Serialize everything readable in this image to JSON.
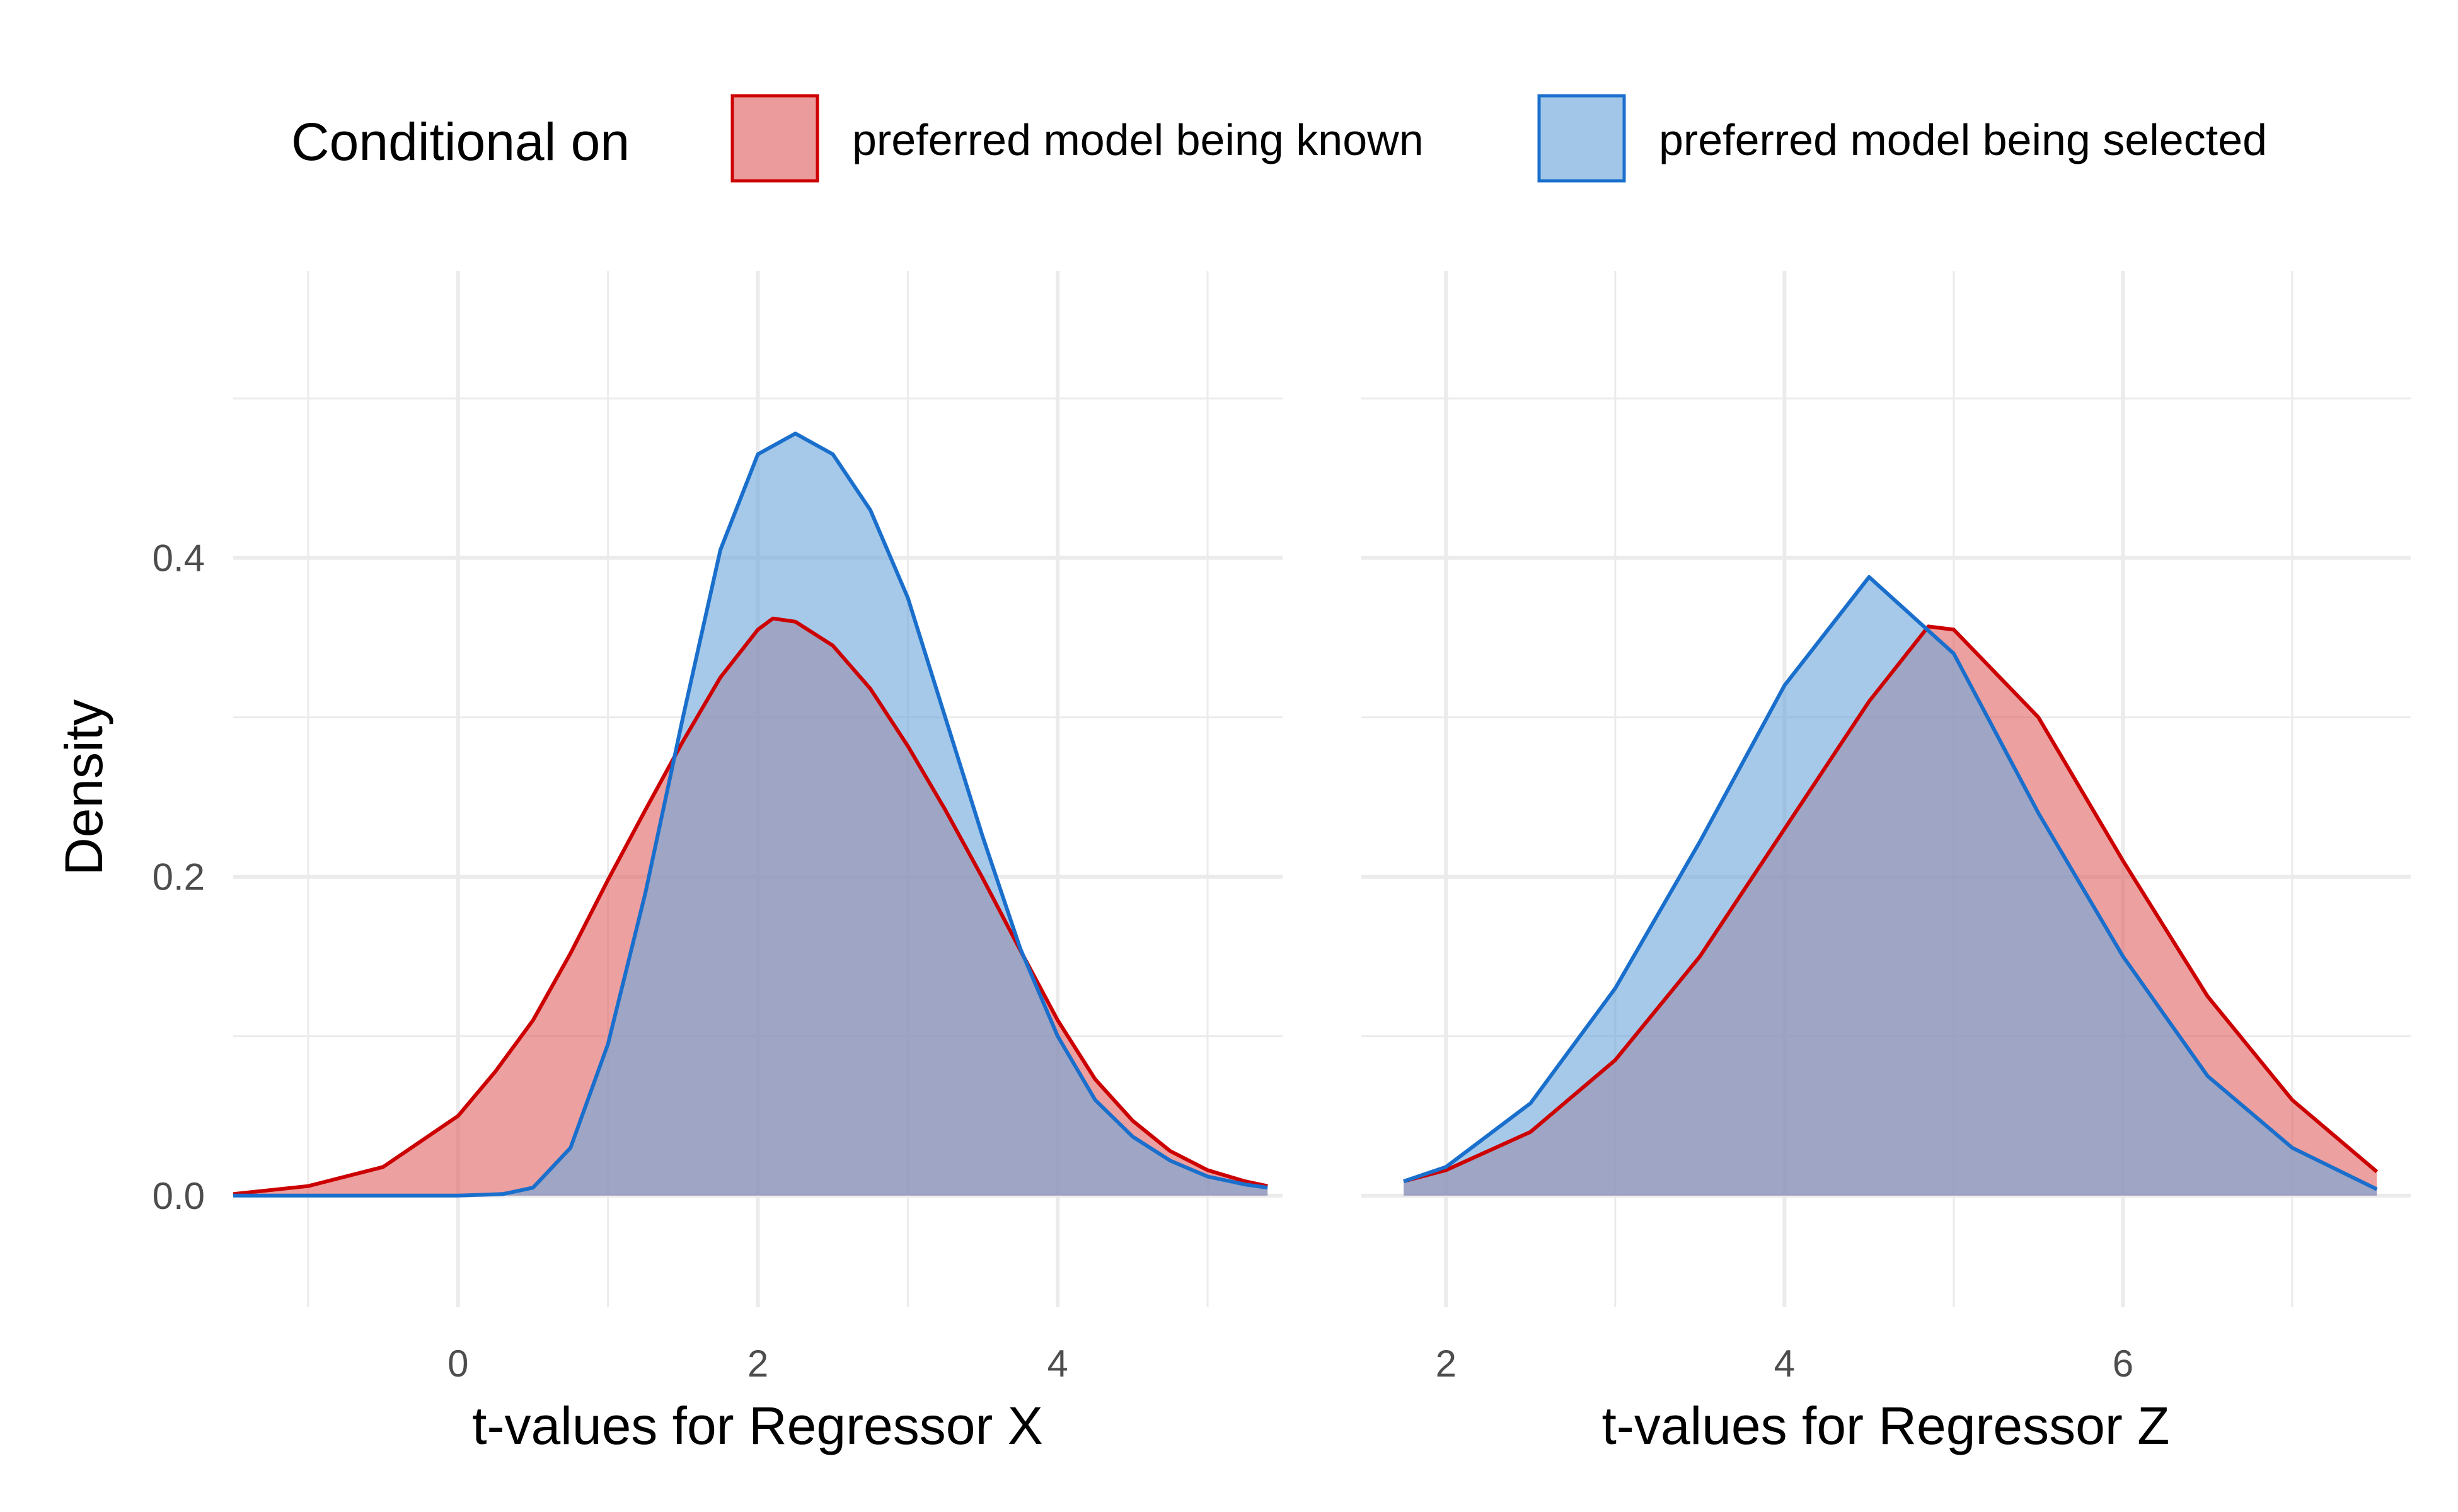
{
  "chart_data": {
    "type": "area",
    "legend": {
      "title": "Conditional on",
      "position": "top",
      "entries": [
        {
          "label": "preferred model being known",
          "fill": "#E06666",
          "stroke": "#CC0000"
        },
        {
          "label": "preferred model being selected",
          "fill": "#6FA8DC",
          "stroke": "#1A6FCC"
        }
      ]
    },
    "ylabel": "Density",
    "ylim": [
      -0.07,
      0.58
    ],
    "yticks": [
      0.0,
      0.2,
      0.4
    ],
    "ytick_labels": [
      "0.0",
      "0.2",
      "0.4"
    ],
    "overlap_color": "#9988AA",
    "panels": [
      {
        "name": "regressor-x",
        "xlabel": "t-values for Regressor X",
        "xlim": [
          -1.5,
          5.5
        ],
        "xticks": [
          0,
          2,
          4
        ],
        "xtick_labels": [
          "0",
          "2",
          "4"
        ],
        "series": [
          {
            "name": "preferred model being known",
            "x": [
              -1.5,
              -1.0,
              -0.5,
              0.0,
              0.25,
              0.5,
              0.75,
              1.0,
              1.25,
              1.5,
              1.75,
              2.0,
              2.1,
              2.25,
              2.5,
              2.75,
              3.0,
              3.25,
              3.5,
              3.75,
              4.0,
              4.25,
              4.5,
              4.75,
              5.0,
              5.25,
              5.4
            ],
            "y": [
              0.001,
              0.006,
              0.018,
              0.05,
              0.078,
              0.11,
              0.152,
              0.198,
              0.242,
              0.285,
              0.325,
              0.355,
              0.362,
              0.36,
              0.345,
              0.318,
              0.282,
              0.242,
              0.199,
              0.154,
              0.11,
              0.073,
              0.047,
              0.028,
              0.016,
              0.009,
              0.006
            ]
          },
          {
            "name": "preferred model being selected",
            "x": [
              -1.5,
              0.0,
              0.3,
              0.5,
              0.75,
              1.0,
              1.25,
              1.5,
              1.75,
              2.0,
              2.25,
              2.5,
              2.75,
              3.0,
              3.25,
              3.5,
              3.75,
              4.0,
              4.25,
              4.5,
              4.75,
              5.0,
              5.25,
              5.4
            ],
            "y": [
              0.0,
              0.0,
              0.001,
              0.005,
              0.03,
              0.095,
              0.19,
              0.3,
              0.405,
              0.465,
              0.478,
              0.465,
              0.43,
              0.375,
              0.3,
              0.225,
              0.155,
              0.1,
              0.06,
              0.037,
              0.022,
              0.012,
              0.007,
              0.005
            ]
          }
        ]
      },
      {
        "name": "regressor-z",
        "xlabel": "t-values for Regressor Z",
        "xlim": [
          1.5,
          7.7
        ],
        "xticks": [
          2,
          4,
          6
        ],
        "xtick_labels": [
          "2",
          "4",
          "6"
        ],
        "series": [
          {
            "name": "preferred model being known",
            "x": [
              1.75,
              2.0,
              2.5,
              3.0,
              3.5,
              4.0,
              4.5,
              4.85,
              5.0,
              5.5,
              6.0,
              6.5,
              7.0,
              7.5
            ],
            "y": [
              0.009,
              0.016,
              0.04,
              0.085,
              0.15,
              0.23,
              0.31,
              0.357,
              0.355,
              0.3,
              0.21,
              0.125,
              0.06,
              0.015
            ]
          },
          {
            "name": "preferred model being selected",
            "x": [
              1.75,
              2.0,
              2.5,
              3.0,
              3.5,
              4.0,
              4.5,
              5.0,
              5.5,
              6.0,
              6.5,
              7.0,
              7.5
            ],
            "y": [
              0.009,
              0.018,
              0.058,
              0.13,
              0.222,
              0.32,
              0.388,
              0.34,
              0.24,
              0.15,
              0.075,
              0.03,
              0.004
            ]
          }
        ]
      }
    ]
  }
}
